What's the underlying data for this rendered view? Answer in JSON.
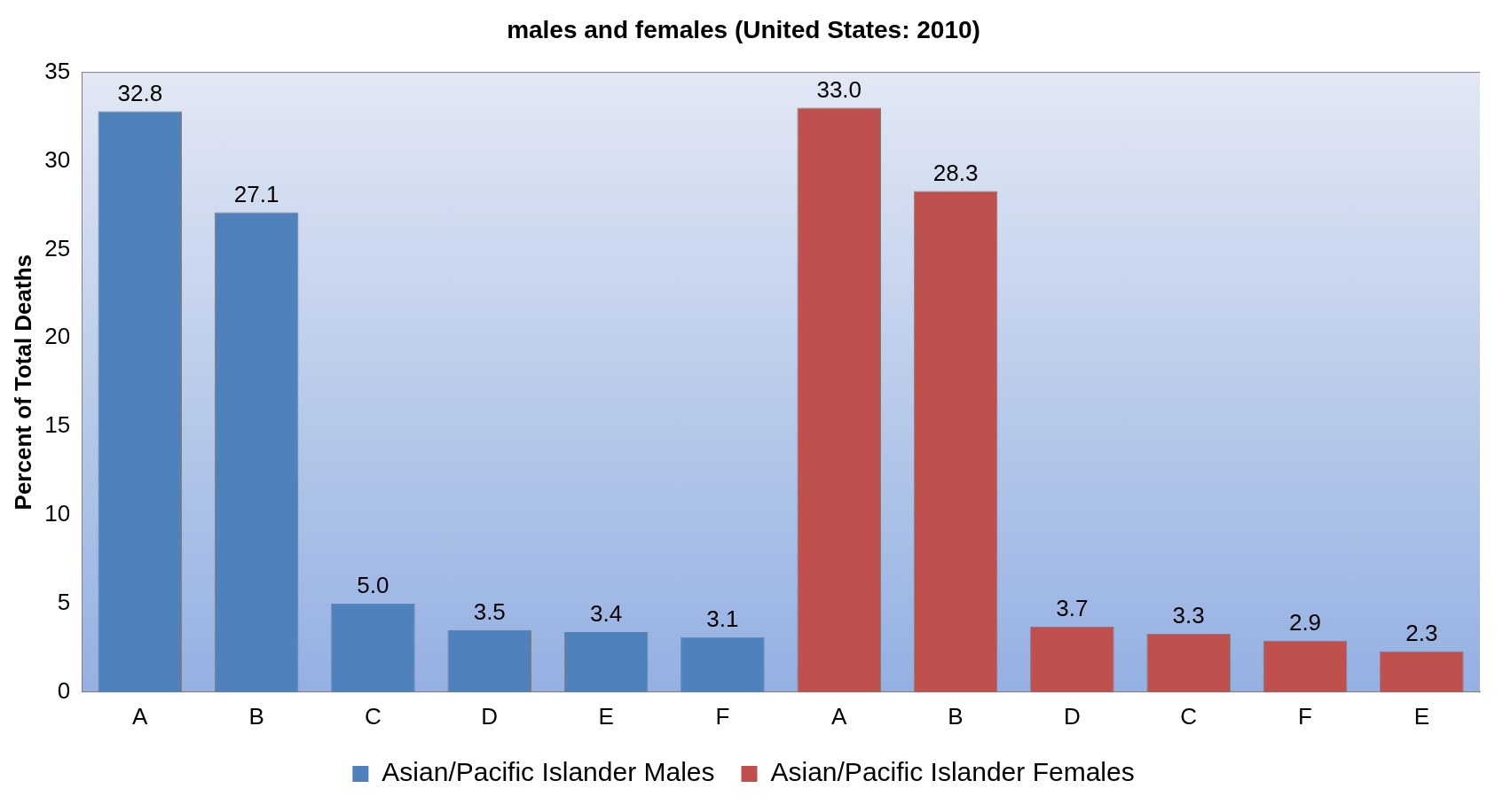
{
  "chart_data": {
    "type": "bar",
    "title": "males and females (United States: 2010)",
    "ylabel": "Percent of Total Deaths",
    "categories": [
      "A",
      "B",
      "C",
      "D",
      "E",
      "F",
      "A",
      "B",
      "D",
      "C",
      "F",
      "E"
    ],
    "series": [
      {
        "name": "Asian/Pacific Islander Males",
        "color": "#4f81bd",
        "values": [
          32.8,
          27.1,
          5.0,
          3.5,
          3.4,
          3.1,
          null,
          null,
          null,
          null,
          null,
          null
        ],
        "value_labels": [
          "32.8",
          "27.1",
          "5.0",
          "3.5",
          "3.4",
          "3.1",
          null,
          null,
          null,
          null,
          null,
          null
        ]
      },
      {
        "name": "Asian/Pacific Islander Females",
        "color": "#c0504d",
        "values": [
          null,
          null,
          null,
          null,
          null,
          null,
          33.0,
          28.3,
          3.7,
          3.3,
          2.9,
          2.3
        ],
        "value_labels": [
          null,
          null,
          null,
          null,
          null,
          null,
          "33.0",
          "28.3",
          "3.7",
          "3.3",
          "2.9",
          "2.3"
        ]
      }
    ],
    "ylim": [
      0,
      35
    ],
    "yticks": [
      0,
      5,
      10,
      15,
      20,
      25,
      30,
      35
    ],
    "grid": false,
    "legend": "bottom"
  }
}
